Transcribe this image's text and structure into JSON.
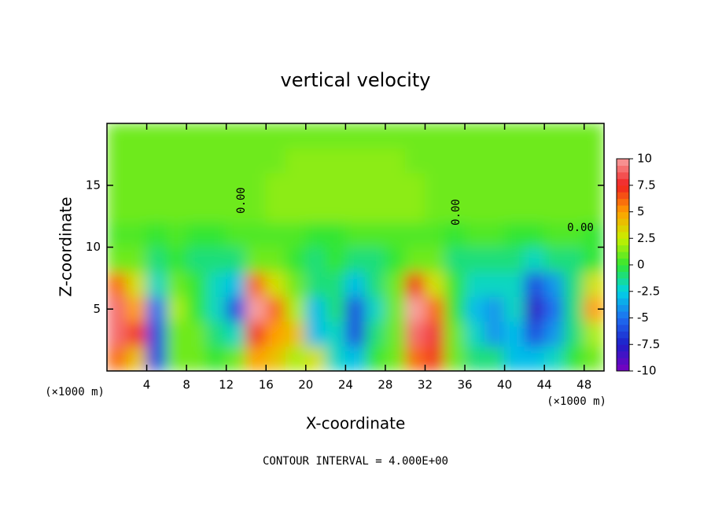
{
  "chart_data": {
    "type": "contour",
    "title": "vertical velocity",
    "xlabel": "X-coordinate",
    "ylabel": "Z-coordinate",
    "x_unit_labels": [
      "(×1000 m)",
      "(×1000 m)"
    ],
    "footer": "CONTOUR INTERVAL = 4.000E+00",
    "contour_labels": [
      "0.00",
      "0.00",
      "0.00"
    ],
    "xlim": [
      0,
      50
    ],
    "ylim": [
      0,
      20
    ],
    "xticks": [
      4,
      8,
      12,
      16,
      20,
      24,
      28,
      32,
      36,
      40,
      44,
      48
    ],
    "yticks": [
      5,
      10,
      15
    ],
    "x": [
      1,
      3,
      5,
      7,
      9,
      11,
      13,
      15,
      17,
      19,
      21,
      23,
      25,
      27,
      29,
      31,
      33,
      35,
      37,
      39,
      41,
      43,
      45,
      47,
      49
    ],
    "y": [
      1,
      3,
      5,
      7,
      9,
      11,
      13,
      15,
      17,
      19
    ],
    "z": [
      [
        6,
        4,
        -6,
        1,
        1,
        0,
        1,
        5,
        4,
        2,
        3,
        -2,
        -3,
        0,
        1,
        6,
        7,
        1,
        -1,
        -1,
        -3,
        -3,
        -2,
        0,
        1
      ],
      [
        9,
        7,
        -6,
        1,
        1,
        -1,
        -2,
        7,
        5,
        4,
        -3,
        -2,
        -6,
        -1,
        1,
        9,
        8,
        1,
        -2,
        -4,
        -3,
        -6,
        -4,
        -1,
        2
      ],
      [
        9,
        5,
        -5,
        2,
        0,
        -2,
        -6,
        10,
        6,
        2,
        -3,
        -1,
        -6,
        -2,
        1,
        10,
        6,
        0,
        -3,
        -4,
        -2,
        -8,
        -5,
        -1,
        5
      ],
      [
        6,
        3,
        -2,
        1,
        0,
        -2,
        -3,
        6,
        3,
        1,
        -1,
        -1,
        -3,
        -1,
        1,
        7,
        3,
        0,
        -2,
        -2,
        -2,
        -6,
        -4,
        -1,
        3
      ],
      [
        1,
        1,
        -1,
        0,
        -1,
        -1,
        -1,
        1,
        1,
        0,
        -1,
        0,
        -1,
        -1,
        0,
        1,
        1,
        -1,
        -1,
        -1,
        -1,
        -2,
        -1,
        -1,
        0
      ],
      [
        0.5,
        0.5,
        0,
        0.5,
        0,
        0,
        0.5,
        0.5,
        0.5,
        0.5,
        0,
        0,
        0.5,
        0.5,
        0.5,
        0.5,
        0.5,
        0,
        0.5,
        0.5,
        0,
        0,
        0.5,
        0.5,
        0
      ],
      [
        1,
        1,
        1,
        1,
        1,
        1,
        1,
        1,
        1.5,
        1.5,
        1.5,
        1.5,
        1.5,
        1.5,
        1.5,
        1.5,
        1,
        1,
        1,
        1,
        1,
        1,
        1,
        1,
        1
      ],
      [
        1,
        1,
        1,
        1,
        1,
        1,
        1,
        1,
        1.5,
        1.5,
        1.5,
        1.5,
        1.5,
        1.5,
        1.5,
        1.5,
        1,
        1,
        1,
        1,
        1,
        1,
        1,
        1,
        1
      ],
      [
        1,
        1,
        1,
        1,
        1,
        1,
        1,
        1,
        1,
        1.5,
        1.5,
        1.5,
        1.5,
        1.5,
        1.5,
        1,
        1,
        1,
        1,
        1,
        1,
        1,
        1,
        1,
        1
      ],
      [
        1,
        1,
        1,
        1,
        1,
        1,
        1,
        1,
        1,
        1,
        1,
        1,
        1,
        1,
        1,
        1,
        1,
        1,
        1,
        1,
        1,
        1,
        1,
        1,
        1
      ]
    ],
    "colorbar": {
      "ticks": [
        -10,
        -7.5,
        -5,
        -2.5,
        0,
        2.5,
        5,
        7.5,
        10
      ],
      "colors": [
        "#7a00c0",
        "#1e1ec8",
        "#1e6ef0",
        "#00d2e6",
        "#32e632",
        "#c8f000",
        "#ffa000",
        "#f02020",
        "#f8a0a0"
      ]
    }
  }
}
